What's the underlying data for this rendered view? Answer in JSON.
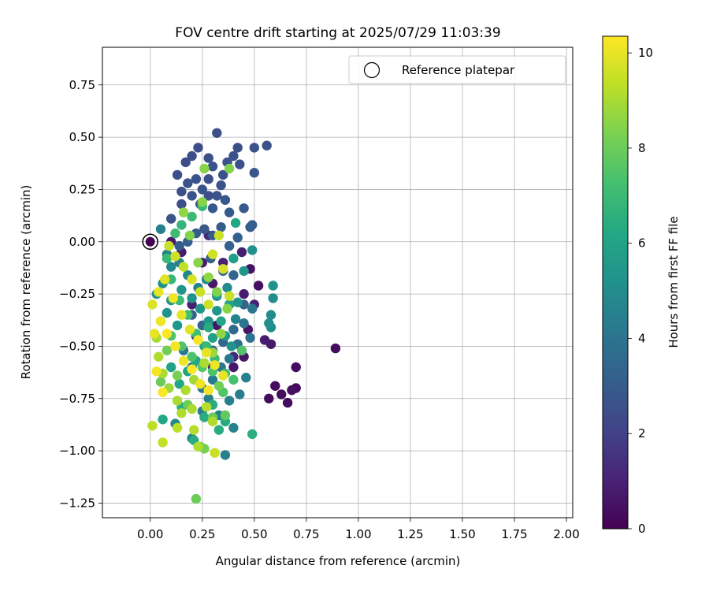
{
  "chart_data": {
    "type": "scatter",
    "title": "FOV centre drift starting at 2025/07/29 11:03:39",
    "xlabel": "Angular distance from reference (arcmin)",
    "ylabel": "Rotation from reference (arcmin)",
    "xlim": [
      -0.23,
      2.03
    ],
    "ylim": [
      -1.32,
      0.93
    ],
    "xticks": [
      0.0,
      0.25,
      0.5,
      0.75,
      1.0,
      1.25,
      1.5,
      1.75,
      2.0
    ],
    "xtick_labels": [
      "0.00",
      "0.25",
      "0.50",
      "0.75",
      "1.00",
      "1.25",
      "1.50",
      "1.75",
      "2.00"
    ],
    "yticks": [
      0.75,
      0.5,
      0.25,
      0.0,
      -0.25,
      -0.5,
      -0.75,
      -1.0,
      -1.25
    ],
    "ytick_labels": [
      "0.75",
      "0.50",
      "0.25",
      "0.00",
      "−0.25",
      "−0.50",
      "−0.75",
      "−1.00",
      "−1.25"
    ],
    "grid": true,
    "legend": {
      "placement": "top-right",
      "entries": [
        "Reference platepar"
      ]
    },
    "reference_point": {
      "x": 0.0,
      "y": 0.0
    },
    "colorbar": {
      "label": "Hours from first FF file",
      "colormap": "viridis",
      "range": [
        0,
        10.35
      ],
      "ticks": [
        0,
        2,
        4,
        6,
        8,
        10
      ],
      "tick_labels": [
        "0",
        "2",
        "4",
        "6",
        "8",
        "10"
      ]
    },
    "points": [
      [
        0.89,
        -0.51,
        0.3
      ],
      [
        0.7,
        -0.6,
        0.3
      ],
      [
        0.7,
        -0.7,
        0.3
      ],
      [
        0.68,
        -0.71,
        0.4
      ],
      [
        0.66,
        -0.77,
        0.3
      ],
      [
        0.63,
        -0.73,
        0.3
      ],
      [
        0.6,
        -0.69,
        0.3
      ],
      [
        0.57,
        -0.75,
        0.3
      ],
      [
        0.52,
        -0.21,
        0.4
      ],
      [
        0.48,
        -0.13,
        0.5
      ],
      [
        0.58,
        -0.49,
        0.7
      ],
      [
        0.55,
        -0.47,
        0.8
      ],
      [
        0.45,
        -0.55,
        0.6
      ],
      [
        0.4,
        -0.6,
        0.7
      ],
      [
        0.47,
        -0.42,
        0.6
      ],
      [
        0.45,
        -0.25,
        0.8
      ],
      [
        0.44,
        -0.05,
        0.9
      ],
      [
        0.32,
        -0.4,
        0.6
      ],
      [
        0.3,
        -0.2,
        0.7
      ],
      [
        0.25,
        -0.1,
        0.8
      ],
      [
        0.2,
        -0.3,
        0.9
      ],
      [
        0.15,
        -0.05,
        0.8
      ],
      [
        0.1,
        0.0,
        0.7
      ],
      [
        0.35,
        -0.1,
        1.0
      ],
      [
        0.4,
        -0.55,
        1.1
      ],
      [
        0.3,
        -0.6,
        1.0
      ],
      [
        0.28,
        0.03,
        1.2
      ],
      [
        0.22,
        -0.45,
        0.9
      ],
      [
        0.5,
        -0.3,
        1.0
      ],
      [
        0.38,
        -0.3,
        0.9
      ],
      [
        0.32,
        0.52,
        2.5
      ],
      [
        0.56,
        0.46,
        2.6
      ],
      [
        0.5,
        0.45,
        2.6
      ],
      [
        0.42,
        0.45,
        2.5
      ],
      [
        0.37,
        0.38,
        2.6
      ],
      [
        0.28,
        0.4,
        2.5
      ],
      [
        0.23,
        0.45,
        2.4
      ],
      [
        0.2,
        0.41,
        2.5
      ],
      [
        0.17,
        0.38,
        2.4
      ],
      [
        0.13,
        0.32,
        2.5
      ],
      [
        0.5,
        0.33,
        2.8
      ],
      [
        0.43,
        0.37,
        2.5
      ],
      [
        0.4,
        0.41,
        2.6
      ],
      [
        0.35,
        0.32,
        2.6
      ],
      [
        0.3,
        0.36,
        2.7
      ],
      [
        0.28,
        0.3,
        2.5
      ],
      [
        0.25,
        0.25,
        2.6
      ],
      [
        0.22,
        0.3,
        2.7
      ],
      [
        0.18,
        0.28,
        2.6
      ],
      [
        0.15,
        0.24,
        2.5
      ],
      [
        0.34,
        0.27,
        2.7
      ],
      [
        0.32,
        0.22,
        2.6
      ],
      [
        0.36,
        0.2,
        2.8
      ],
      [
        0.3,
        0.16,
        2.9
      ],
      [
        0.28,
        0.22,
        2.5
      ],
      [
        0.24,
        0.18,
        2.6
      ],
      [
        0.2,
        0.22,
        2.7
      ],
      [
        0.15,
        0.18,
        2.5
      ],
      [
        0.1,
        0.11,
        2.6
      ],
      [
        0.45,
        0.16,
        2.9
      ],
      [
        0.48,
        0.07,
        3.0
      ],
      [
        0.49,
        0.08,
        3.1
      ],
      [
        0.38,
        0.14,
        2.9
      ],
      [
        0.34,
        0.07,
        3.0
      ],
      [
        0.3,
        0.03,
        3.0
      ],
      [
        0.26,
        0.06,
        2.8
      ],
      [
        0.42,
        0.02,
        3.1
      ],
      [
        0.38,
        -0.02,
        3.2
      ],
      [
        0.22,
        0.04,
        3.0
      ],
      [
        0.18,
        0.0,
        3.1
      ],
      [
        0.14,
        -0.02,
        3.0
      ],
      [
        0.29,
        -0.08,
        3.2
      ],
      [
        0.35,
        -0.14,
        3.3
      ],
      [
        0.4,
        -0.16,
        3.4
      ],
      [
        0.45,
        -0.3,
        3.4
      ],
      [
        0.4,
        -0.42,
        3.5
      ],
      [
        0.35,
        -0.48,
        3.4
      ],
      [
        0.3,
        -0.52,
        3.3
      ],
      [
        0.25,
        -0.4,
        3.4
      ],
      [
        0.2,
        -0.35,
        3.2
      ],
      [
        0.49,
        -0.32,
        4.0
      ],
      [
        0.48,
        -0.46,
        3.9
      ],
      [
        0.45,
        -0.39,
        4.0
      ],
      [
        0.42,
        -0.49,
        3.8
      ],
      [
        0.38,
        -0.56,
        4.1
      ],
      [
        0.34,
        -0.6,
        4.0
      ],
      [
        0.3,
        -0.66,
        4.2
      ],
      [
        0.25,
        -0.7,
        4.0
      ],
      [
        0.2,
        -0.6,
        3.9
      ],
      [
        0.16,
        -0.52,
        4.1
      ],
      [
        0.36,
        -1.02,
        4.5
      ],
      [
        0.4,
        -0.89,
        4.6
      ],
      [
        0.46,
        -0.65,
        4.5
      ],
      [
        0.25,
        -0.81,
        4.4
      ],
      [
        0.2,
        -0.94,
        4.7
      ],
      [
        0.12,
        -0.87,
        4.8
      ],
      [
        0.28,
        -0.75,
        4.5
      ],
      [
        0.33,
        -0.83,
        4.6
      ],
      [
        0.38,
        -0.76,
        4.5
      ],
      [
        0.43,
        -0.73,
        4.4
      ],
      [
        0.05,
        0.06,
        4.5
      ],
      [
        0.08,
        -0.06,
        4.6
      ],
      [
        0.1,
        -0.12,
        4.8
      ],
      [
        0.14,
        -0.1,
        4.6
      ],
      [
        0.18,
        -0.16,
        4.7
      ],
      [
        0.23,
        -0.22,
        4.5
      ],
      [
        0.27,
        -0.18,
        4.8
      ],
      [
        0.32,
        -0.26,
        4.7
      ],
      [
        0.37,
        -0.22,
        4.9
      ],
      [
        0.41,
        -0.37,
        4.6
      ],
      [
        0.58,
        -0.35,
        5.0
      ],
      [
        0.58,
        -0.41,
        5.0
      ],
      [
        0.57,
        -0.39,
        5.1
      ],
      [
        0.59,
        -0.21,
        5.2
      ],
      [
        0.59,
        -0.27,
        5.0
      ],
      [
        0.49,
        -0.04,
        5.2
      ],
      [
        0.45,
        -0.14,
        5.4
      ],
      [
        0.42,
        -0.29,
        5.3
      ],
      [
        0.39,
        -0.5,
        5.2
      ],
      [
        0.36,
        -0.45,
        5.4
      ],
      [
        0.32,
        -0.33,
        5.3
      ],
      [
        0.28,
        -0.38,
        5.2
      ],
      [
        0.24,
        -0.32,
        5.4
      ],
      [
        0.2,
        -0.27,
        5.2
      ],
      [
        0.15,
        -0.23,
        5.3
      ],
      [
        0.1,
        -0.28,
        5.4
      ],
      [
        0.06,
        -0.2,
        5.2
      ],
      [
        0.03,
        -0.25,
        5.3
      ],
      [
        0.08,
        -0.34,
        5.2
      ],
      [
        0.13,
        -0.4,
        5.4
      ],
      [
        0.4,
        -0.08,
        5.8
      ],
      [
        0.41,
        0.09,
        6.2
      ],
      [
        0.38,
        -0.3,
        6.0
      ],
      [
        0.34,
        -0.38,
        6.1
      ],
      [
        0.3,
        -0.46,
        5.9
      ],
      [
        0.26,
        -0.5,
        6.0
      ],
      [
        0.22,
        -0.57,
        6.2
      ],
      [
        0.18,
        -0.62,
        6.0
      ],
      [
        0.14,
        -0.68,
        6.1
      ],
      [
        0.1,
        -0.6,
        5.9
      ],
      [
        0.49,
        -0.92,
        6.5
      ],
      [
        0.36,
        -0.86,
        6.3
      ],
      [
        0.33,
        -0.9,
        6.4
      ],
      [
        0.06,
        -0.85,
        6.2
      ],
      [
        0.21,
        -0.95,
        6.4
      ],
      [
        0.3,
        -0.78,
        6.4
      ],
      [
        0.26,
        -0.84,
        6.4
      ],
      [
        0.15,
        -0.79,
        6.5
      ],
      [
        0.32,
        -0.25,
        6.3
      ],
      [
        0.28,
        -0.41,
        6.4
      ],
      [
        0.25,
        0.17,
        6.9
      ],
      [
        0.2,
        0.12,
        7.0
      ],
      [
        0.15,
        0.08,
        6.8
      ],
      [
        0.12,
        0.04,
        7.1
      ],
      [
        0.08,
        -0.08,
        7.0
      ],
      [
        0.1,
        -0.18,
        6.9
      ],
      [
        0.14,
        -0.28,
        7.0
      ],
      [
        0.18,
        -0.35,
        7.2
      ],
      [
        0.22,
        -0.44,
        7.1
      ],
      [
        0.27,
        -0.5,
        6.9
      ],
      [
        0.31,
        -0.56,
        7.0
      ],
      [
        0.36,
        -0.63,
        7.2
      ],
      [
        0.4,
        -0.66,
        7.3
      ],
      [
        0.44,
        -0.52,
        7.5
      ],
      [
        0.35,
        -0.72,
        7.5
      ],
      [
        0.3,
        -0.62,
        7.4
      ],
      [
        0.25,
        -0.6,
        7.6
      ],
      [
        0.2,
        -0.55,
        7.4
      ],
      [
        0.15,
        -0.5,
        7.5
      ],
      [
        0.1,
        -0.45,
        7.5
      ],
      [
        0.36,
        -0.83,
        7.8
      ],
      [
        0.24,
        -0.98,
        8.0
      ],
      [
        0.26,
        -0.99,
        8.2
      ],
      [
        0.3,
        -0.84,
        8.0
      ],
      [
        0.22,
        -1.23,
        8.0
      ],
      [
        0.33,
        -0.69,
        8.1
      ],
      [
        0.18,
        -0.78,
        8.0
      ],
      [
        0.13,
        -0.64,
        8.2
      ],
      [
        0.05,
        -0.67,
        8.0
      ],
      [
        0.08,
        -0.52,
        8.1
      ],
      [
        0.26,
        0.35,
        8.5
      ],
      [
        0.38,
        0.35,
        8.4
      ],
      [
        0.25,
        0.19,
        8.5
      ],
      [
        0.16,
        0.14,
        8.6
      ],
      [
        0.19,
        0.03,
        8.4
      ],
      [
        0.23,
        -0.1,
        8.5
      ],
      [
        0.28,
        -0.17,
        8.6
      ],
      [
        0.32,
        -0.24,
        8.4
      ],
      [
        0.37,
        -0.32,
        8.5
      ],
      [
        0.34,
        -0.44,
        8.6
      ],
      [
        0.3,
        -0.53,
        8.8
      ],
      [
        0.26,
        -0.58,
        9.0
      ],
      [
        0.21,
        -0.66,
        8.9
      ],
      [
        0.17,
        -0.71,
        9.1
      ],
      [
        0.13,
        -0.76,
        9.0
      ],
      [
        0.09,
        -0.7,
        8.8
      ],
      [
        0.06,
        -0.63,
        9.0
      ],
      [
        0.04,
        -0.55,
        9.1
      ],
      [
        0.03,
        -0.46,
        9.0
      ],
      [
        0.05,
        -0.38,
        8.9
      ],
      [
        0.27,
        -0.79,
        9.2
      ],
      [
        0.3,
        -0.86,
        9.1
      ],
      [
        0.2,
        -0.8,
        9.0
      ],
      [
        0.15,
        -0.82,
        9.1
      ],
      [
        0.13,
        -0.89,
        9.3
      ],
      [
        0.21,
        -0.9,
        9.2
      ],
      [
        0.23,
        -0.98,
        9.1
      ],
      [
        0.06,
        -0.96,
        9.4
      ],
      [
        0.01,
        -0.88,
        9.3
      ],
      [
        0.31,
        -1.01,
        9.5
      ],
      [
        0.09,
        -0.02,
        9.5
      ],
      [
        0.12,
        -0.07,
        9.6
      ],
      [
        0.16,
        -0.12,
        9.4
      ],
      [
        0.2,
        -0.18,
        9.7
      ],
      [
        0.24,
        -0.24,
        9.5
      ],
      [
        0.28,
        -0.3,
        9.6
      ],
      [
        0.33,
        0.03,
        9.5
      ],
      [
        0.3,
        -0.06,
        9.6
      ],
      [
        0.35,
        -0.13,
        9.7
      ],
      [
        0.38,
        -0.26,
        9.5
      ],
      [
        0.01,
        -0.3,
        9.8
      ],
      [
        0.04,
        -0.24,
        10.0
      ],
      [
        0.07,
        -0.18,
        9.9
      ],
      [
        0.11,
        -0.27,
        10.1
      ],
      [
        0.15,
        -0.35,
        10.0
      ],
      [
        0.19,
        -0.42,
        9.9
      ],
      [
        0.23,
        -0.47,
        10.2
      ],
      [
        0.27,
        -0.53,
        10.0
      ],
      [
        0.31,
        -0.59,
        10.1
      ],
      [
        0.35,
        -0.64,
        10.0
      ],
      [
        0.28,
        -0.71,
        10.2
      ],
      [
        0.24,
        -0.68,
        10.1
      ],
      [
        0.2,
        -0.61,
        10.3
      ],
      [
        0.16,
        -0.57,
        10.1
      ],
      [
        0.12,
        -0.5,
        10.2
      ],
      [
        0.08,
        -0.44,
        10.3
      ],
      [
        0.05,
        -0.38,
        10.1
      ],
      [
        0.02,
        -0.44,
        10.0
      ],
      [
        0.03,
        -0.62,
        10.2
      ],
      [
        0.06,
        -0.72,
        10.3
      ]
    ]
  }
}
